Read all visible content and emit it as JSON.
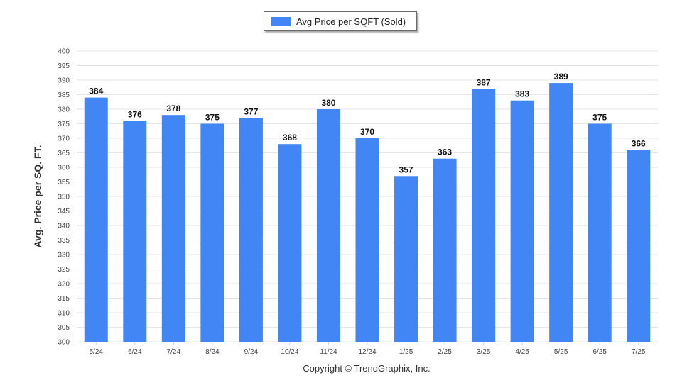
{
  "chart_data": {
    "type": "bar",
    "title": "",
    "xlabel": "",
    "ylabel": "Avg. Price per SQ. FT.",
    "ylim": [
      300,
      400
    ],
    "ytick_step": 5,
    "grid": true,
    "legend_position": "top-center",
    "series": [
      {
        "name": "Avg Price per SQFT (Sold)",
        "color": "#4285f4",
        "values": [
          384,
          376,
          378,
          375,
          377,
          368,
          380,
          370,
          357,
          363,
          387,
          383,
          389,
          375,
          366
        ]
      }
    ],
    "categories": [
      "5/24",
      "6/24",
      "7/24",
      "8/24",
      "9/24",
      "10/24",
      "11/24",
      "12/24",
      "1/25",
      "2/25",
      "3/25",
      "4/25",
      "5/25",
      "6/25",
      "7/25"
    ],
    "data_labels": true
  },
  "footer": {
    "copyright": "Copyright © TrendGraphix, Inc."
  }
}
